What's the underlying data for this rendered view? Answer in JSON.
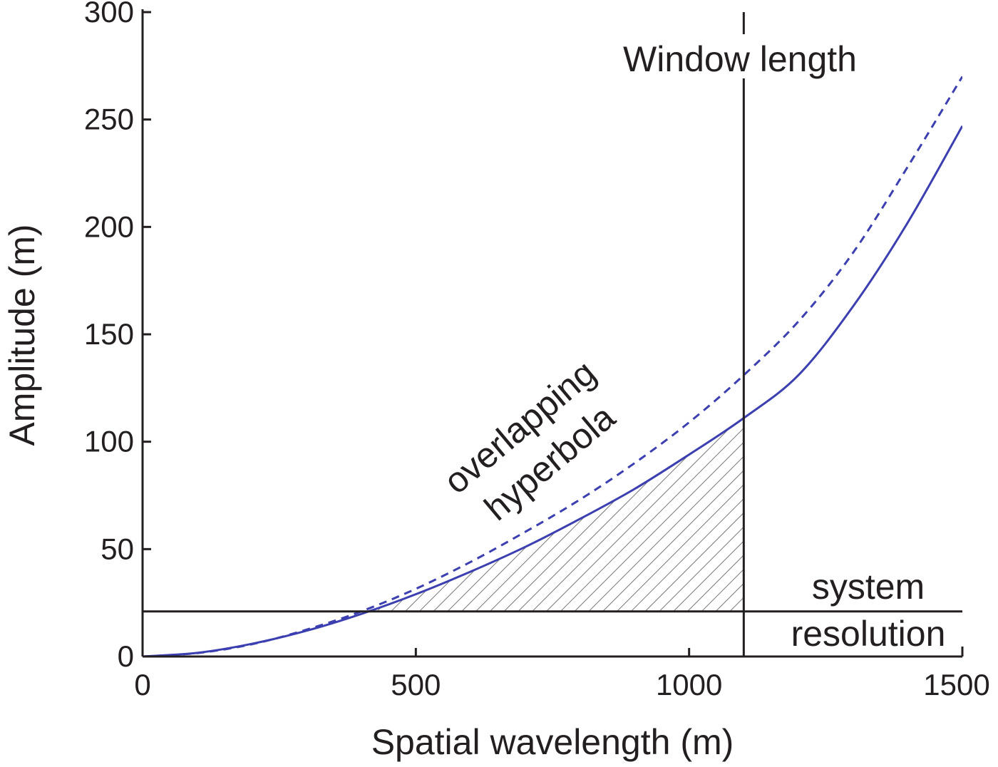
{
  "chart_data": {
    "type": "line",
    "title": "",
    "xlabel": "Spatial wavelength (m)",
    "ylabel": "Amplitude (m)",
    "xlim": [
      0,
      1500
    ],
    "ylim": [
      0,
      300
    ],
    "xticks": [
      "0",
      "500",
      "1000",
      "1500"
    ],
    "yticks": [
      "0",
      "50",
      "100",
      "150",
      "200",
      "250",
      "300"
    ],
    "xtick_values": [
      0,
      500,
      1000,
      1500
    ],
    "ytick_values": [
      0,
      50,
      100,
      150,
      200,
      250,
      300
    ],
    "series": [
      {
        "style": "solid",
        "color": "#3b3fb0",
        "x": [
          0,
          100,
          200,
          300,
          400,
          500,
          600,
          700,
          800,
          900,
          1000,
          1100,
          1200,
          1300,
          1400,
          1500
        ],
        "y": [
          0,
          1.7,
          5.9,
          12,
          19.8,
          29,
          39.5,
          51,
          64,
          78,
          94,
          111,
          131,
          163,
          202,
          247
        ]
      },
      {
        "style": "dashed",
        "color": "#3b3fb0",
        "x": [
          0,
          100,
          200,
          300,
          400,
          500,
          600,
          700,
          800,
          900,
          1000,
          1100,
          1200,
          1300,
          1400,
          1500
        ],
        "y": [
          0,
          1.6,
          5.7,
          12.5,
          21,
          31.5,
          44,
          58,
          73,
          90,
          109,
          131,
          156,
          188,
          228,
          270
        ]
      }
    ],
    "window_length": {
      "label": "Window length",
      "x": 1100
    },
    "system_resolution": {
      "label_line1": "system",
      "label_line2": "resolution",
      "y": 21
    },
    "annotation": {
      "line1": "overlapping",
      "line2": "hyperbola"
    },
    "grid": false,
    "legend": "none",
    "colors": {
      "axis": "#231f20",
      "curve": "#3b3fb0",
      "hatch": "#555555"
    }
  }
}
